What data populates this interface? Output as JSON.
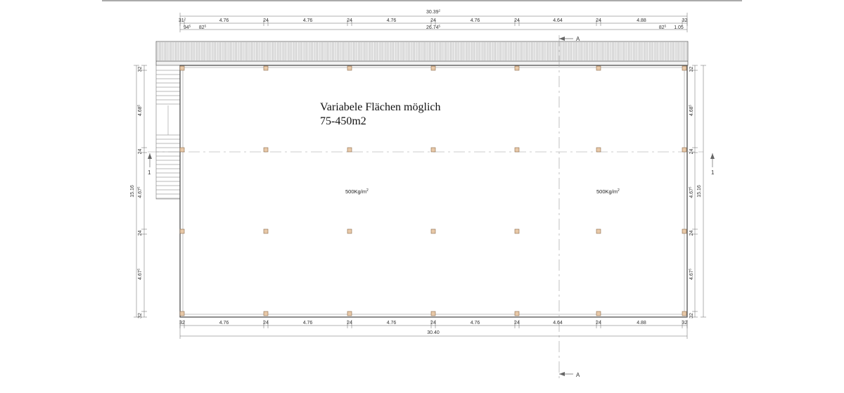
{
  "title": {
    "line1": "Variabele Flächen möglich",
    "line2": "75-450m2"
  },
  "loads": [
    {
      "base": "500Kg/m",
      "sup": "2"
    },
    {
      "base": "500Kg/m",
      "sup": "2"
    }
  ],
  "top_dims": {
    "overall": "30.39",
    "overall_sup": "2",
    "row1": [
      "31",
      "4.76",
      "24",
      "4.76",
      "24",
      "4.76",
      "24",
      "4.76",
      "24",
      "4.64",
      "24",
      "4.88",
      "32"
    ],
    "row1_sups": {
      "0": "2"
    },
    "row2": {
      "left_a": "94",
      "left_a_sup": "5",
      "left_b": "82",
      "left_b_sup": "5",
      "middle": "26.74",
      "middle_sup": "5",
      "right_a": "82",
      "right_a_sup": "5",
      "right_b": "1.05"
    }
  },
  "bottom_dims": {
    "row1": [
      "32",
      "4.76",
      "24",
      "4.76",
      "24",
      "4.76",
      "24",
      "4.76",
      "24",
      "4.64",
      "24",
      "4.88",
      "32"
    ],
    "overall": "30.40"
  },
  "left_dims": {
    "inner": [
      "32",
      "4.68",
      "24",
      "4.67",
      "24",
      "4.67",
      "32"
    ],
    "inner_sups": {
      "1": "5",
      "3": "5",
      "5": "5"
    },
    "overall": "15.16"
  },
  "right_dims": {
    "inner": [
      "32",
      "4.68",
      "24",
      "4.67",
      "24",
      "4.67",
      "32"
    ],
    "inner_sups": {
      "1": "5",
      "3": "5",
      "5": "5"
    },
    "overall": "15.16"
  },
  "section_marks": {
    "top": "A",
    "bottom": "A",
    "left": "1",
    "right": "1"
  },
  "colors": {
    "column_fill": "#e8c9a8",
    "column_stroke": "#8a6a4a",
    "wall": "#444444",
    "hatch": "#9a9a9a",
    "dim_line": "#666666",
    "axis": "#888888"
  }
}
